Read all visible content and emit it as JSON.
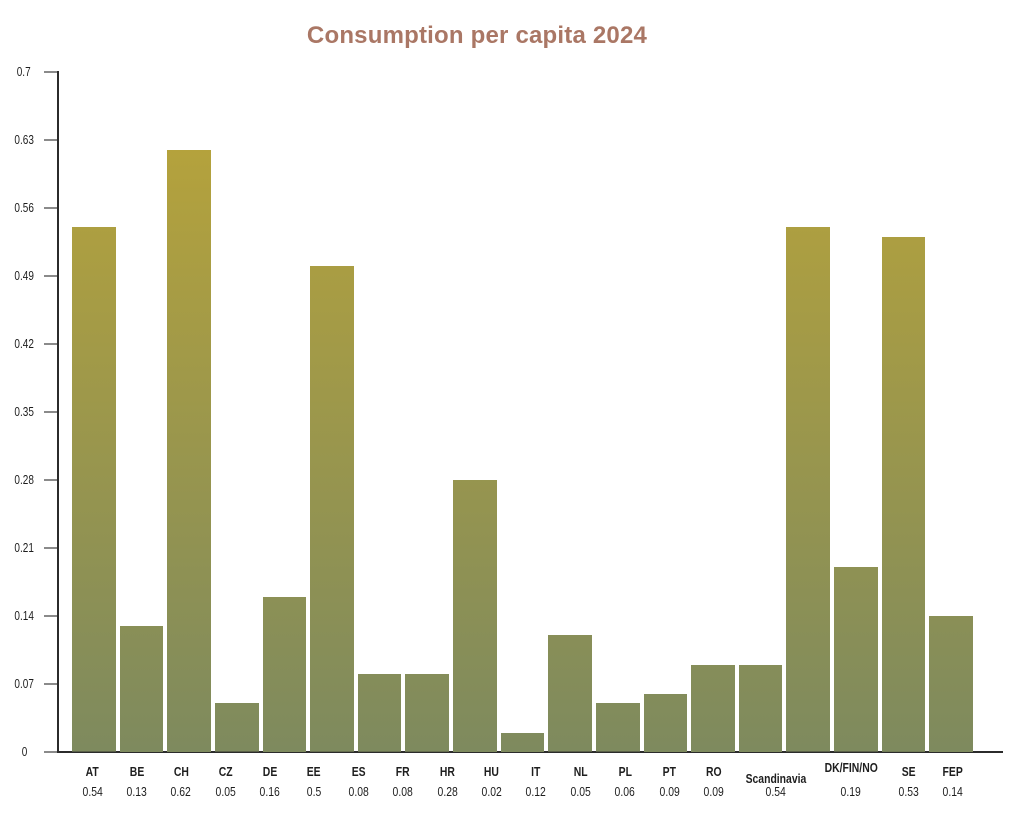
{
  "title": "Consumption per capita 2024",
  "colors": {
    "title": "#aa7765",
    "axis": "#2b2b2b",
    "tick": "#8a8a8a",
    "label_text": "#1e1e1e",
    "bar_gradient_top": "#bba538",
    "bar_gradient_bottom": "#7e8a5e",
    "background": "#ffffff"
  },
  "chart_data": {
    "type": "bar",
    "title": "Consumption per capita 2024",
    "categories": [
      "AT",
      "BE",
      "CH",
      "CZ",
      "DE",
      "EE",
      "ES",
      "FR",
      "HR",
      "HU",
      "IT",
      "NL",
      "PL",
      "PT",
      "RO",
      "Scandinavia",
      "DK/FIN/NO",
      "SE",
      "FEP"
    ],
    "values": [
      0.54,
      0.13,
      0.62,
      0.05,
      0.16,
      0.5,
      0.08,
      0.08,
      0.28,
      0.02,
      0.12,
      0.05,
      0.06,
      0.09,
      0.09,
      0.54,
      0.19,
      0.53,
      0.14
    ],
    "value_labels": [
      "0.54",
      "0.13",
      "0.62",
      "0.05",
      "0.16",
      "0.5",
      "0.08",
      "0.08",
      "0.28",
      "0.02",
      "0.12",
      "0.05",
      "0.06",
      "0.09",
      "0.09",
      "0.54",
      "0.19",
      "0.53",
      "0.14"
    ],
    "ytick_labels": [
      "0.7",
      "0.63",
      "0.56",
      "0.49",
      "0.42",
      "0.35",
      "0.28",
      "0.21",
      "0.14",
      "0.07",
      "0"
    ],
    "ylim": [
      0,
      0.7
    ],
    "xlabel": "",
    "ylabel": "",
    "grid": false,
    "legend": null,
    "bar_color_mapping": "vertical gradient anchored to plot area: gold at y=0.7 to olive green at y=0"
  }
}
